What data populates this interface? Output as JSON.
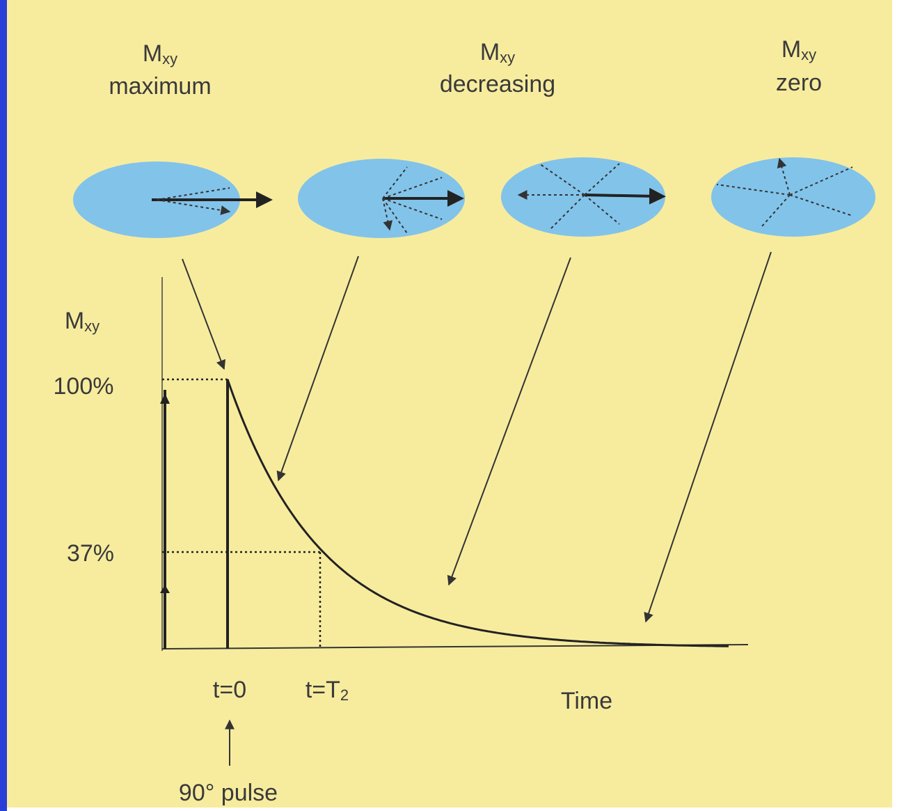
{
  "states": [
    {
      "symbol": "M",
      "subscript": "xy",
      "label": "maximum"
    },
    {
      "symbol": "M",
      "subscript": "xy",
      "label": "decreasing"
    },
    {
      "symbol": "M",
      "subscript": "xy",
      "label": "zero"
    }
  ],
  "graph": {
    "y_axis": {
      "symbol": "M",
      "subscript": "xy"
    },
    "levels": [
      "100%",
      "37%"
    ],
    "t0": "t=0",
    "t2": {
      "text": "t=T",
      "subscript": "2"
    },
    "x_axis": "Time",
    "pulse": "90° pulse"
  }
}
